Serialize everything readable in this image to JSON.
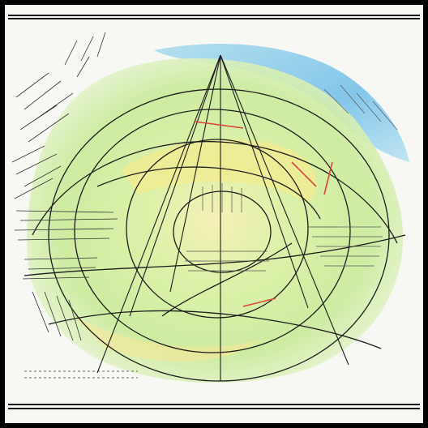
{
  "image": {
    "kind": "sketched contour map drawing",
    "palette": {
      "water": "#7cc4ea",
      "land_light": "#dff3b4",
      "land_mid": "#c6e98a",
      "highlight": "#f3e58a",
      "ink": "#1c1c1c",
      "accent_red": "#d9463a"
    }
  }
}
